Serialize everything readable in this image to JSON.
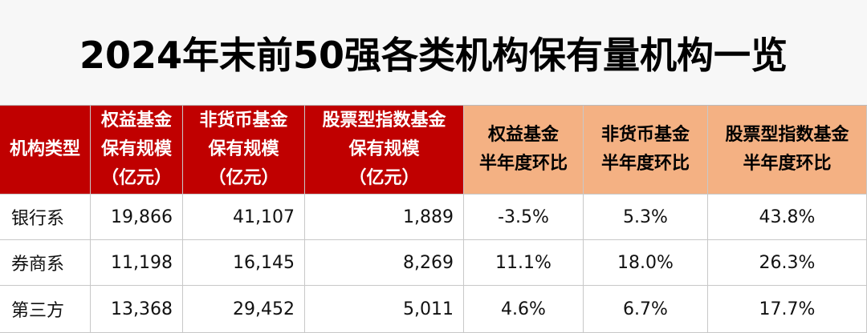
{
  "title": "2024年末前50强各类机构保有量机构一览",
  "table": {
    "header": [
      [
        "机构类型"
      ],
      [
        "权益基金",
        "保有规模",
        "（亿元）"
      ],
      [
        "非货币基金",
        "保有规模",
        "（亿元）"
      ],
      [
        "股票型指数基金",
        "保有规模",
        "（亿元）"
      ],
      [
        "权益基金",
        "半年度环比"
      ],
      [
        "非货币基金",
        "半年度环比"
      ],
      [
        "股票型指数基金",
        "半年度环比"
      ]
    ],
    "rows": [
      [
        "银行系",
        "19,866",
        "41,107",
        "1,889",
        "-3.5%",
        "5.3%",
        "43.8%"
      ],
      [
        "券商系",
        "11,198",
        "16,145",
        "8,269",
        "11.1%",
        "18.0%",
        "26.3%"
      ],
      [
        "第三方",
        "13,368",
        "29,452",
        "5,011",
        "4.6%",
        "6.7%",
        "17.7%"
      ]
    ]
  }
}
